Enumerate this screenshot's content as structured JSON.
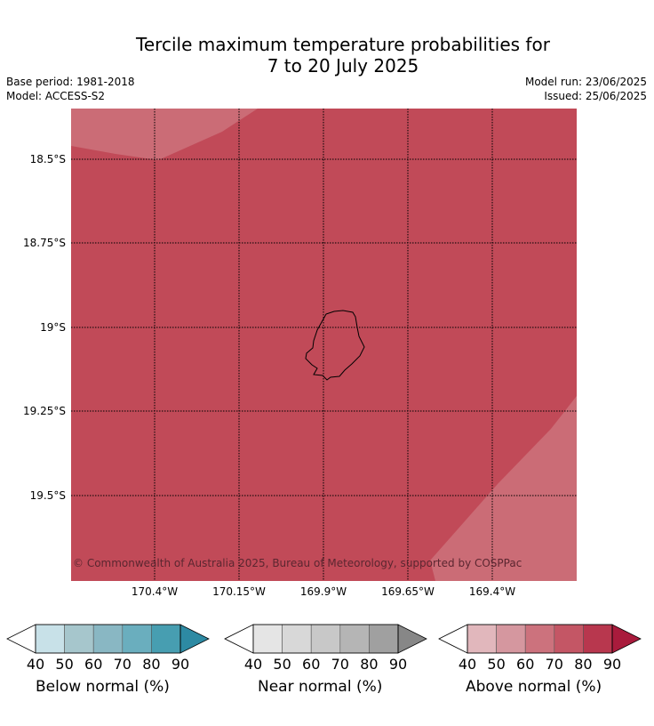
{
  "title_line1": "Tercile maximum temperature probabilities for",
  "title_line2": "7 to 20 July 2025",
  "base_period": "Base period: 1981-2018",
  "model": "Model: ACCESS-S2",
  "model_run": "Model run: 23/06/2025",
  "issued": "Issued: 25/06/2025",
  "copyright": "© Commonwealth of Australia 2025, Bureau of Meteorology, supported by COSPPac",
  "lat_labels": [
    "18.5°S",
    "18.75°S",
    "19°S",
    "19.25°S",
    "19.5°S"
  ],
  "lon_labels": [
    "170.4°W",
    "170.15°W",
    "169.9°W",
    "169.65°W",
    "169.4°W"
  ],
  "colorbars": [
    {
      "label": "Below normal (%)",
      "ticks": [
        "40",
        "50",
        "60",
        "70",
        "80",
        "90"
      ],
      "colors": [
        "#c8e1e8",
        "#a6c6cc",
        "#89b7c3",
        "#6aaebe",
        "#479eb1",
        "#2d8aa3"
      ]
    },
    {
      "label": "Near normal (%)",
      "ticks": [
        "40",
        "50",
        "60",
        "70",
        "80",
        "90"
      ],
      "colors": [
        "#e5e5e5",
        "#d8d8d8",
        "#c8c8c8",
        "#b5b5b5",
        "#a0a0a0",
        "#878787"
      ]
    },
    {
      "label": "Above normal (%)",
      "ticks": [
        "40",
        "50",
        "60",
        "70",
        "80",
        "90"
      ],
      "colors": [
        "#e1b7bc",
        "#d5979f",
        "#cc727d",
        "#c45665",
        "#b8374e",
        "#a91b3c"
      ]
    }
  ],
  "colors": {
    "above_80_90": "#c14a58",
    "above_70_80": "#cb6c76"
  }
}
